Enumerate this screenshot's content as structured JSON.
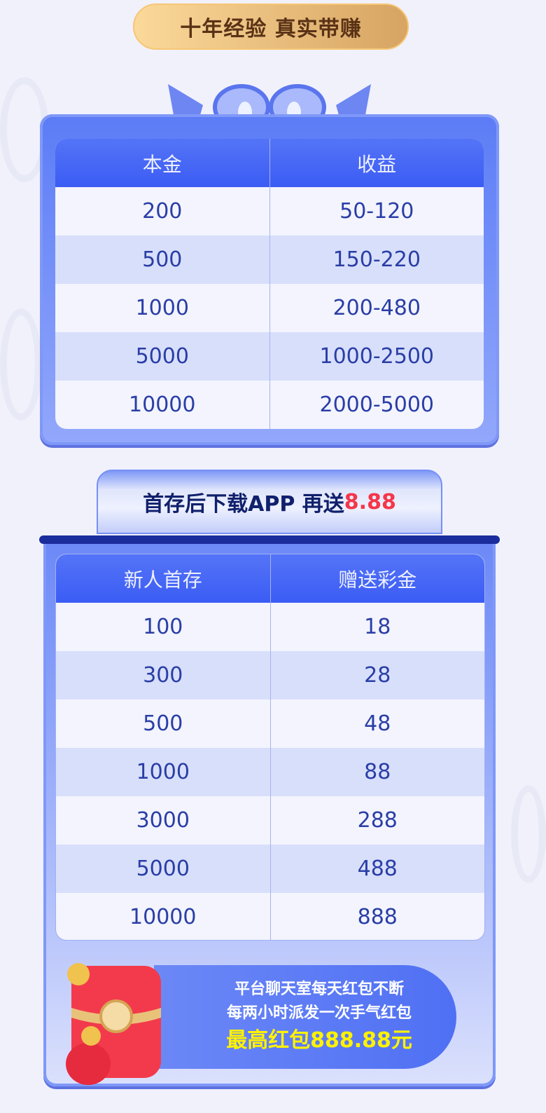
{
  "header": {
    "title": "十年经验 真实带赚"
  },
  "table1": {
    "headers": [
      "本金",
      "收益"
    ],
    "rows": [
      [
        "200",
        "50-120"
      ],
      [
        "500",
        "150-220"
      ],
      [
        "1000",
        "200-480"
      ],
      [
        "5000",
        "1000-2500"
      ],
      [
        "10000",
        "2000-5000"
      ]
    ]
  },
  "banner": {
    "text": "首存后下载APP 再送",
    "highlight": "8.88"
  },
  "table2": {
    "headers": [
      "新人首存",
      "赠送彩金"
    ],
    "rows": [
      [
        "100",
        "18"
      ],
      [
        "300",
        "28"
      ],
      [
        "500",
        "48"
      ],
      [
        "1000",
        "88"
      ],
      [
        "3000",
        "288"
      ],
      [
        "5000",
        "488"
      ],
      [
        "10000",
        "888"
      ]
    ]
  },
  "promo": {
    "line1": "平台聊天室每天红包不断",
    "line2": "每两小时派发一次手气红包",
    "line3": "最高红包888.88元"
  },
  "colors": {
    "accent": "#3b5cf4",
    "highlight_red": "#f5364a",
    "yellow": "#fff200",
    "title_brown": "#5a3216"
  }
}
